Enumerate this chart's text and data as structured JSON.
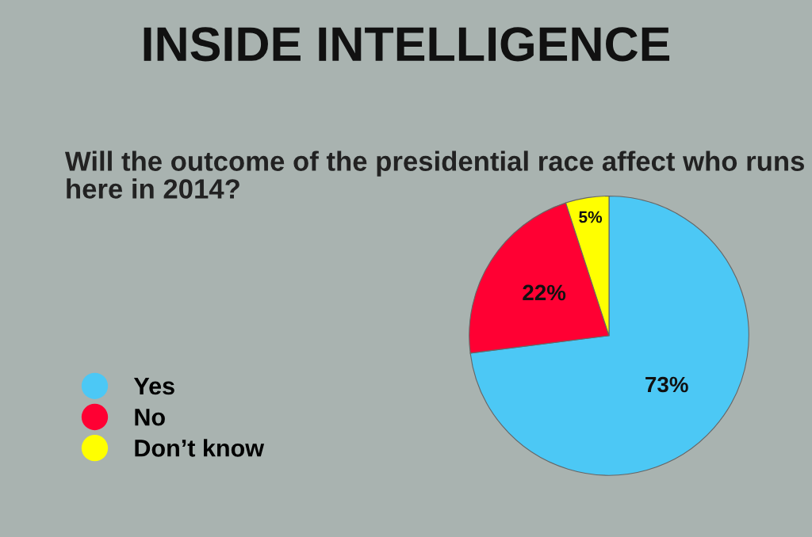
{
  "chart_data": {
    "type": "pie",
    "title": "INSIDE INTELLIGENCE",
    "subtitle": "Will the outcome of the presidential race affect who runs here in 2014?",
    "categories": [
      "Yes",
      "No",
      "Don’t know"
    ],
    "values": [
      73,
      22,
      5
    ],
    "colors": [
      "#4cc8f5",
      "#ff0033",
      "#ffff00"
    ],
    "value_labels": [
      "73%",
      "22%",
      "5%"
    ],
    "legend": "bottom left"
  }
}
